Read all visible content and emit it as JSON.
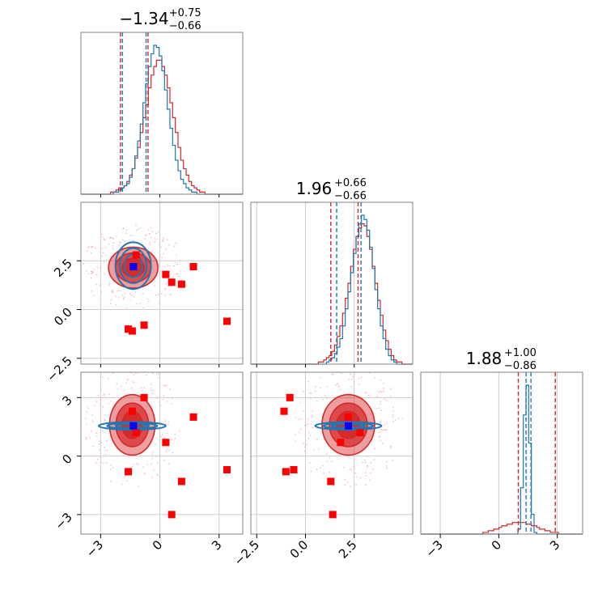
{
  "colors": {
    "red": "#d62728",
    "blue": "#1f77b4",
    "marker_red": "#ff0000",
    "marker_blue": "#0000ff",
    "grid": "#cccccc",
    "frame": "#808080"
  },
  "chart_data": {
    "type": "corner",
    "grid": true,
    "parameters": [
      {
        "range": [
          -4.0,
          4.2
        ],
        "ticks": [
          -3,
          0,
          3
        ],
        "tick_labels": [
          "−3",
          "0",
          "3"
        ],
        "title": {
          "median": "−1.34",
          "plus": "+0.75",
          "minus": "−0.66"
        }
      },
      {
        "range": [
          -2.8,
          5.5
        ],
        "ticks": [
          -2.5,
          0,
          2.5
        ],
        "tick_labels": [
          "−2.5",
          "0.0",
          "2.5"
        ],
        "title": {
          "median": "1.96",
          "plus": "+0.66",
          "minus": "−0.66"
        }
      },
      {
        "range": [
          -4.0,
          4.3
        ],
        "ticks": [
          -3,
          0,
          3
        ],
        "tick_labels": [
          "−3",
          "0",
          "3"
        ],
        "title": {
          "median": "1.88",
          "plus": "+1.00",
          "minus": "−0.86"
        }
      }
    ],
    "quantiles": {
      "red": [
        [
          -2.0,
          -0.6
        ],
        [
          1.3,
          2.7
        ],
        [
          1.0,
          2.9
        ]
      ],
      "blue": [
        [
          -1.9,
          -0.7
        ],
        [
          1.6,
          2.85
        ],
        [
          1.4,
          1.65
        ]
      ]
    },
    "truth_points": {
      "p0": [
        -1.6,
        1.1,
        0.3,
        -0.8,
        3.4,
        1.7,
        0.6,
        -1.4,
        -1.2
      ],
      "p1": [
        -1.0,
        1.3,
        1.8,
        -0.8,
        -0.6,
        2.2,
        1.4,
        -1.1,
        2.8
      ],
      "p2": [
        -0.8,
        -1.3,
        0.7,
        3.0,
        -0.7,
        2.0,
        -3.0,
        2.3,
        1.2
      ]
    },
    "best_point": [
      -1.34,
      2.2,
      1.55
    ],
    "series": [
      {
        "color": "red",
        "hist0": [
          0,
          0,
          0,
          0,
          0,
          0,
          0,
          0,
          0,
          0,
          0,
          1,
          1,
          2,
          3,
          3,
          4,
          6,
          9,
          12,
          17,
          22,
          29,
          36,
          42,
          50,
          56,
          60,
          63,
          63,
          60,
          56,
          50,
          43,
          36,
          29,
          22,
          16,
          12,
          9,
          6,
          4,
          3,
          2,
          1,
          1,
          0,
          0,
          0,
          0,
          0,
          0,
          0,
          0,
          0,
          0,
          0,
          0,
          0,
          0
        ],
        "hist1": [
          0,
          0,
          0,
          0,
          0,
          0,
          0,
          0,
          0,
          0,
          0,
          0,
          0,
          0,
          0,
          0,
          0,
          0,
          0,
          0,
          0,
          0,
          0,
          0,
          0,
          1,
          1,
          2,
          3,
          4,
          6,
          9,
          13,
          18,
          24,
          31,
          38,
          46,
          54,
          60,
          64,
          66,
          65,
          60,
          54,
          46,
          38,
          30,
          23,
          16,
          11,
          7,
          4,
          2,
          1,
          1,
          0,
          0,
          0,
          0
        ],
        "hist2": [
          0,
          0,
          0,
          0,
          0,
          0,
          0,
          0,
          0,
          0,
          0,
          0,
          0,
          0,
          0,
          0,
          0,
          0,
          0,
          0,
          0,
          0,
          0,
          1,
          1,
          2,
          2,
          3,
          3,
          4,
          5,
          5,
          6,
          6,
          7,
          7,
          7,
          7,
          7,
          6,
          6,
          5,
          5,
          4,
          3,
          3,
          2,
          2,
          1,
          1,
          1,
          0,
          0,
          0,
          0,
          0,
          0,
          0,
          0,
          0
        ],
        "contour": {
          "c01": [
            -1.35,
            2.15,
            1.25,
            1.05
          ],
          "c02": [
            -1.4,
            1.6,
            1.15,
            1.55
          ],
          "c12": [
            2.2,
            1.6,
            1.35,
            1.55
          ]
        }
      },
      {
        "color": "blue",
        "hist0": [
          0,
          0,
          0,
          0,
          0,
          0,
          0,
          0,
          0,
          0,
          0,
          0,
          1,
          1,
          2,
          3,
          4,
          5,
          8,
          12,
          18,
          25,
          33,
          43,
          52,
          60,
          66,
          70,
          69,
          65,
          58,
          49,
          40,
          31,
          23,
          16,
          11,
          7,
          5,
          3,
          2,
          1,
          1,
          0,
          0,
          0,
          0,
          0,
          0,
          0,
          0,
          0,
          0,
          0,
          0,
          0,
          0,
          0,
          0,
          0
        ],
        "hist1": [
          0,
          0,
          0,
          0,
          0,
          0,
          0,
          0,
          0,
          0,
          0,
          0,
          0,
          0,
          0,
          0,
          0,
          0,
          0,
          0,
          0,
          0,
          0,
          0,
          0,
          0,
          0,
          0,
          1,
          2,
          3,
          5,
          8,
          12,
          18,
          26,
          34,
          43,
          52,
          60,
          66,
          70,
          68,
          63,
          55,
          45,
          35,
          26,
          18,
          12,
          7,
          4,
          2,
          1,
          0,
          0,
          0,
          0,
          0,
          0
        ],
        "hist2": [
          0,
          0,
          0,
          0,
          0,
          0,
          0,
          0,
          0,
          0,
          0,
          0,
          0,
          0,
          0,
          0,
          0,
          0,
          0,
          0,
          0,
          0,
          0,
          0,
          0,
          0,
          0,
          0,
          0,
          0,
          0,
          0,
          0,
          0,
          0,
          0,
          3,
          28,
          72,
          90,
          55,
          12,
          1,
          0,
          0,
          0,
          0,
          0,
          0,
          0,
          0,
          0,
          0,
          0,
          0,
          0,
          0,
          0,
          0,
          0
        ],
        "contour": {
          "c01": [
            -1.35,
            2.25,
            0.9,
            1.2
          ],
          "c02": [
            -1.4,
            1.55,
            1.7,
            0.2
          ],
          "c12": [
            2.2,
            1.55,
            1.7,
            0.2
          ]
        }
      }
    ]
  }
}
